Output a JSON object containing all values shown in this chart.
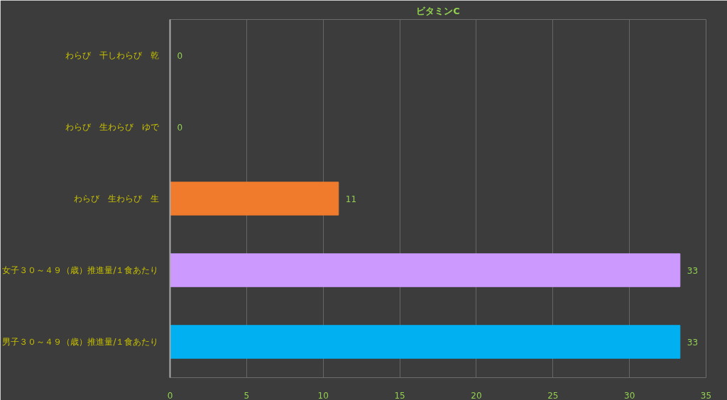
{
  "chart_data": {
    "type": "bar",
    "orientation": "horizontal",
    "title": "ビタミンC",
    "categories": [
      "わらび　干しわらび　乾",
      "わらび　生わらび　ゆで",
      "わらび　生わらび　生",
      "女子３０～４９（歳）推進量/１食あたり",
      "男子３０～４９（歳）推進量/１食あたり"
    ],
    "values": [
      0,
      0,
      11,
      33.3,
      33.3
    ],
    "value_labels": [
      "0",
      "0",
      "11",
      "33",
      "33"
    ],
    "colors": [
      "#f07b2c",
      "#f07b2c",
      "#f07b2c",
      "#cc99ff",
      "#00b0f0"
    ],
    "xlim": [
      0,
      35
    ],
    "xticks": [
      0,
      5,
      10,
      15,
      20,
      25,
      30,
      35
    ],
    "grid": "x"
  }
}
